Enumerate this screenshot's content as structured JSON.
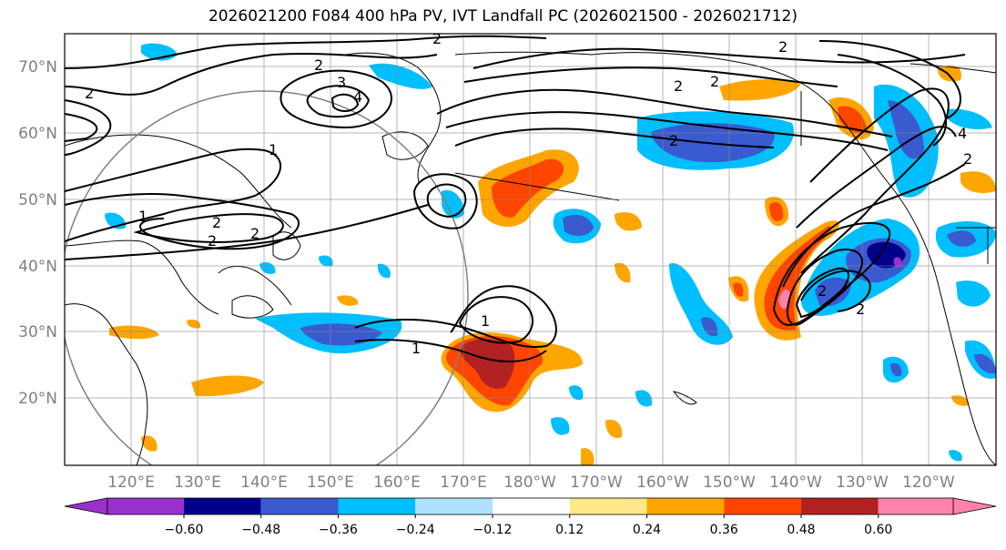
{
  "title": "2026021200 F084 400 hPa PV, IVT Landfall PC (2026021500 - 2026021712)",
  "lat_labels": [
    "70°N",
    "60°N",
    "50°N",
    "40°N",
    "30°N",
    "20°N"
  ],
  "lon_labels": [
    "120°E",
    "130°E",
    "140°E",
    "150°E",
    "160°E",
    "170°E",
    "180°W",
    "170°W",
    "160°W",
    "150°W",
    "140°W",
    "130°W",
    "120°W"
  ],
  "colorbar": {
    "colors": [
      "#9932CC",
      "#00008B",
      "#3A5AD0",
      "#00BFFF",
      "#B0E0FF",
      "#FFFFFF",
      "#FFE88A",
      "#FFA500",
      "#FF4500",
      "#B22222",
      "#FF82AB"
    ],
    "tick_labels": [
      "−0.60",
      "−0.48",
      "−0.36",
      "−0.24",
      "−0.12",
      "0.12",
      "0.24",
      "0.36",
      "0.48",
      "0.60"
    ]
  },
  "contour_labels": [
    "2",
    "2",
    "2",
    "2",
    "3",
    "4",
    "1",
    "1",
    "2",
    "2",
    "2",
    "2",
    "2",
    "4",
    "2",
    "2",
    "1",
    "1",
    "2",
    "2"
  ]
}
